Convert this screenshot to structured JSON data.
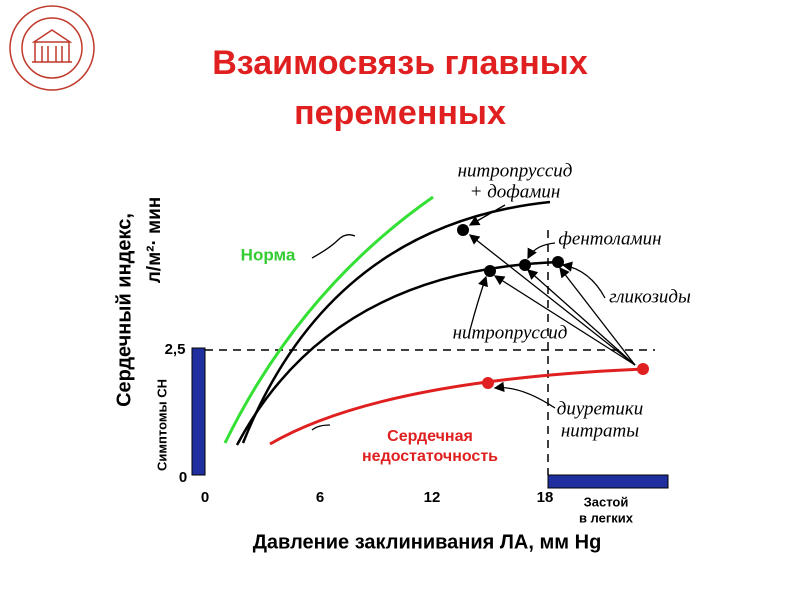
{
  "title": {
    "line1": "Взаимосвязь главных",
    "line2": "переменных"
  },
  "axes": {
    "y_title_line1": "Сердечный индекс,",
    "y_title_line2": "л/м²· мин",
    "y_secondary": "Симптомы СН",
    "y_ticks": [
      "0",
      "2,5"
    ],
    "x_ticks": [
      "0",
      "6",
      "12",
      "18"
    ],
    "x_title": "Давление заклинивания ЛА, мм Hg",
    "x_zone_line1": "Застой",
    "x_zone_line2": "в легких"
  },
  "curves": {
    "normal": "Норма",
    "failure_line1": "Сердечная",
    "failure_line2": "недостаточность"
  },
  "annotations": {
    "np_dopamine_line1": "нитропруссид",
    "np_dopamine_line2": "+ дофамин",
    "phentolamine": "фентоламин",
    "glycosides": "гликозиды",
    "nitroprusside": "нитропруссид",
    "diuretics_line1": "диуретики",
    "diuretics_line2": "нитраты"
  }
}
